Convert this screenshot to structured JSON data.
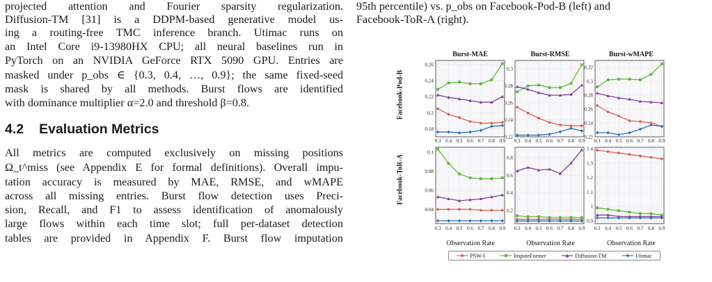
{
  "left_text": {
    "para1_lines": [
      "projected attention and Fourier sparsity regularization.",
      "Diffusion-TM [31] is a DDPM-based generative model us-",
      "ing a routing-free TMC inference branch. Utimac runs on",
      "an Intel Core i9-13980HX CPU; all neural baselines run in",
      "PyTorch on an NVIDIA GeForce RTX 5090 GPU. Entries are",
      "masked under p_obs ∈ {0.3, 0.4, …, 0.9}; the same fixed-seed",
      "mask is shared by all methods. Burst flows are identified",
      "with dominance multiplier α=2.0 and threshold β=0.8."
    ],
    "section_number": "4.2",
    "section_title": "Evaluation Metrics",
    "para2_lines": [
      "All metrics are computed exclusively on missing positions",
      "Ω_t^miss (see Appendix E for formal definitions). Overall impu-",
      "tation accuracy is measured by MAE, RMSE, and wMAPE",
      "across all missing entries. Burst flow detection uses Preci-",
      "sion, Recall, and F1 to assess identification of anomalously",
      "large flows within each time slot; full per-dataset detection",
      "tables are provided in Appendix F. Burst flow imputation"
    ]
  },
  "caption": {
    "line1": "95th percentile) vs. p_obs on Facebook-Pod-B (left) and",
    "line2": "Facebook-ToR-A (right)."
  },
  "figure": {
    "column_titles": [
      "Burst-MAE",
      "Burst-RMSE",
      "Burst-wMAPE"
    ],
    "row_labels": [
      "Facebook-Pod-B",
      "Facebook-ToR-A"
    ],
    "xlabel": "Observation Rate",
    "legend": [
      "PSW-I",
      "ImputeFormer",
      "Diffusion-TM",
      "Utimac"
    ]
  },
  "chart_data": {
    "type": "line",
    "x": [
      0.3,
      0.4,
      0.5,
      0.6,
      0.7,
      0.8,
      0.9
    ],
    "series_names": [
      "PSW-I",
      "ImputeFormer",
      "Diffusion-TM",
      "Utimac"
    ],
    "colors": {
      "PSW-I": "#e0604f",
      "ImputeFormer": "#5cb840",
      "Diffusion-TM": "#7a3f9e",
      "Utimac": "#2e6fb4"
    },
    "panels": [
      {
        "row": "Facebook-Pod-B",
        "metric": "Burst-MAE",
        "ylim": [
          0.17,
          0.265
        ],
        "yticks": [
          0.18,
          0.2,
          0.22,
          0.24,
          0.26
        ],
        "series": [
          {
            "name": "PSW-I",
            "values": [
              0.205,
              0.198,
              0.194,
              0.189,
              0.187,
              0.187,
              0.188
            ]
          },
          {
            "name": "ImputeFormer",
            "values": [
              0.229,
              0.237,
              0.238,
              0.236,
              0.236,
              0.241,
              0.261
            ]
          },
          {
            "name": "Diffusion-TM",
            "values": [
              0.222,
              0.219,
              0.217,
              0.215,
              0.213,
              0.213,
              0.22
            ]
          },
          {
            "name": "Utimac",
            "values": [
              0.176,
              0.176,
              0.175,
              0.176,
              0.178,
              0.183,
              0.184
            ]
          }
        ]
      },
      {
        "row": "Facebook-Pod-B",
        "metric": "Burst-RMSE",
        "ylim": [
          0.22,
          0.31
        ],
        "yticks": [
          0.22,
          0.24,
          0.26,
          0.28,
          0.3
        ],
        "series": [
          {
            "name": "PSW-I",
            "values": [
              0.255,
              0.248,
              0.242,
              0.237,
              0.234,
              0.233,
              0.233
            ]
          },
          {
            "name": "ImputeFormer",
            "values": [
              0.273,
              0.28,
              0.281,
              0.278,
              0.278,
              0.283,
              0.305
            ]
          },
          {
            "name": "Diffusion-TM",
            "values": [
              0.279,
              0.276,
              0.272,
              0.269,
              0.269,
              0.27,
              0.281
            ]
          },
          {
            "name": "Utimac",
            "values": [
              0.222,
              0.222,
              0.222,
              0.223,
              0.226,
              0.23,
              0.227
            ]
          }
        ]
      },
      {
        "row": "Facebook-Pod-B",
        "metric": "Burst-wMAPE",
        "ylim": [
          0.22,
          0.33
        ],
        "yticks": [
          0.22,
          0.24,
          0.26,
          0.28,
          0.3,
          0.32
        ],
        "series": [
          {
            "name": "PSW-I",
            "values": [
              0.265,
              0.256,
              0.25,
              0.243,
              0.242,
              0.24,
              0.235
            ]
          },
          {
            "name": "ImputeFormer",
            "values": [
              0.292,
              0.302,
              0.303,
              0.303,
              0.302,
              0.31,
              0.325
            ]
          },
          {
            "name": "Diffusion-TM",
            "values": [
              0.283,
              0.279,
              0.276,
              0.274,
              0.271,
              0.27,
              0.269
            ]
          },
          {
            "name": "Utimac",
            "values": [
              0.226,
              0.226,
              0.223,
              0.226,
              0.231,
              0.237,
              0.235
            ]
          }
        ]
      },
      {
        "row": "Facebook-ToR-A",
        "metric": "Burst-MAE",
        "ylim": [
          0.025,
          0.105
        ],
        "yticks": [
          0.04,
          0.06,
          0.08,
          0.1
        ],
        "series": [
          {
            "name": "PSW-I",
            "values": [
              0.04,
              0.04,
              0.04,
              0.04,
              0.039,
              0.039,
              0.039
            ]
          },
          {
            "name": "ImputeFormer",
            "values": [
              0.103,
              0.088,
              0.077,
              0.073,
              0.072,
              0.072,
              0.073
            ]
          },
          {
            "name": "Diffusion-TM",
            "values": [
              0.053,
              0.051,
              0.049,
              0.05,
              0.051,
              0.053,
              0.055
            ]
          },
          {
            "name": "Utimac",
            "values": [
              0.028,
              0.028,
              0.028,
              0.028,
              0.028,
              0.028,
              0.028
            ]
          }
        ]
      },
      {
        "row": "Facebook-ToR-A",
        "metric": "Burst-RMSE",
        "ylim": [
          0.05,
          0.92
        ],
        "yticks": [
          0.2,
          0.4,
          0.6,
          0.8
        ],
        "series": [
          {
            "name": "PSW-I",
            "values": [
              0.1,
              0.1,
              0.1,
              0.1,
              0.1,
              0.1,
              0.1
            ]
          },
          {
            "name": "ImputeFormer",
            "values": [
              0.14,
              0.13,
              0.13,
              0.12,
              0.12,
              0.12,
              0.12
            ]
          },
          {
            "name": "Diffusion-TM",
            "values": [
              0.65,
              0.69,
              0.66,
              0.67,
              0.62,
              0.74,
              0.89
            ]
          },
          {
            "name": "Utimac",
            "values": [
              0.08,
              0.08,
              0.08,
              0.08,
              0.08,
              0.08,
              0.08
            ]
          }
        ]
      },
      {
        "row": "Facebook-ToR-A",
        "metric": "Burst-wMAPE",
        "ylim": [
          0.88,
          1.41
        ],
        "yticks": [
          0.9,
          1.0,
          1.1,
          1.2,
          1.3,
          1.4
        ],
        "series": [
          {
            "name": "PSW-I",
            "values": [
              1.39,
              1.38,
              1.37,
              1.36,
              1.35,
              1.34,
              1.33
            ]
          },
          {
            "name": "ImputeFormer",
            "values": [
              0.99,
              0.98,
              0.97,
              0.96,
              0.95,
              0.95,
              0.94
            ]
          },
          {
            "name": "Diffusion-TM",
            "values": [
              0.94,
              0.94,
              0.93,
              0.93,
              0.93,
              0.93,
              0.93
            ]
          },
          {
            "name": "Utimac",
            "values": [
              0.92,
              0.92,
              0.92,
              0.92,
              0.92,
              0.92,
              0.92
            ]
          }
        ]
      }
    ],
    "grid": true
  }
}
